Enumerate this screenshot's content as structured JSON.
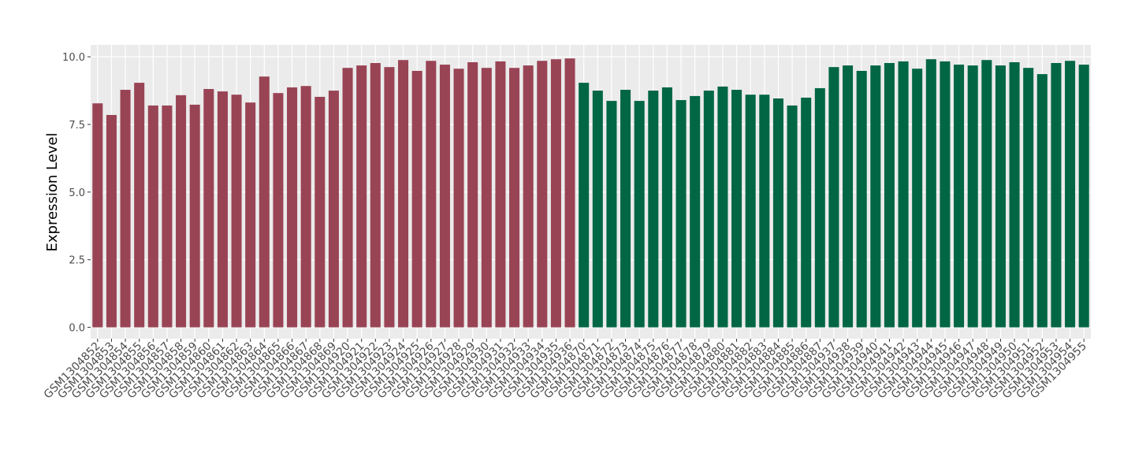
{
  "chart_data": {
    "type": "bar",
    "y_label": "Expression Level",
    "categories": [
      "GSM1304852",
      "GSM1304853",
      "GSM1304854",
      "GSM1304855",
      "GSM1304856",
      "GSM1304857",
      "GSM1304858",
      "GSM1304859",
      "GSM1304860",
      "GSM1304861",
      "GSM1304862",
      "GSM1304863",
      "GSM1304864",
      "GSM1304865",
      "GSM1304866",
      "GSM1304867",
      "GSM1304868",
      "GSM1304869",
      "GSM1304920",
      "GSM1304921",
      "GSM1304922",
      "GSM1304923",
      "GSM1304924",
      "GSM1304925",
      "GSM1304926",
      "GSM1304927",
      "GSM1304928",
      "GSM1304929",
      "GSM1304930",
      "GSM1304931",
      "GSM1304932",
      "GSM1304933",
      "GSM1304934",
      "GSM1304935",
      "GSM1304936",
      "GSM1304870",
      "GSM1304871",
      "GSM1304872",
      "GSM1304873",
      "GSM1304874",
      "GSM1304875",
      "GSM1304876",
      "GSM1304877",
      "GSM1304878",
      "GSM1304879",
      "GSM1304880",
      "GSM1304881",
      "GSM1304882",
      "GSM1304883",
      "GSM1304884",
      "GSM1304885",
      "GSM1304886",
      "GSM1304887",
      "GSM1304937",
      "GSM1304938",
      "GSM1304939",
      "GSM1304940",
      "GSM1304941",
      "GSM1304942",
      "GSM1304943",
      "GSM1304944",
      "GSM1304945",
      "GSM1304946",
      "GSM1304947",
      "GSM1304948",
      "GSM1304949",
      "GSM1304950",
      "GSM1304951",
      "GSM1304952",
      "GSM1304953",
      "GSM1304954",
      "GSM1304955"
    ],
    "values": [
      8.28,
      7.85,
      8.78,
      9.04,
      8.2,
      8.2,
      8.58,
      8.23,
      8.81,
      8.72,
      8.6,
      8.31,
      9.27,
      8.66,
      8.87,
      8.92,
      8.52,
      8.75,
      9.59,
      9.68,
      9.77,
      9.62,
      9.88,
      9.48,
      9.85,
      9.71,
      9.56,
      9.8,
      9.59,
      9.83,
      9.59,
      9.68,
      9.85,
      9.91,
      9.94,
      9.04,
      8.75,
      8.37,
      8.78,
      8.37,
      8.75,
      8.87,
      8.4,
      8.55,
      8.75,
      8.9,
      8.78,
      8.6,
      8.6,
      8.46,
      8.2,
      8.49,
      8.84,
      9.62,
      9.68,
      9.48,
      9.68,
      9.77,
      9.83,
      9.56,
      9.91,
      9.83,
      9.71,
      9.68,
      9.88,
      9.68,
      9.8,
      9.59,
      9.36,
      9.77,
      9.85,
      9.71
    ],
    "colors": [
      "#994455",
      "#994455",
      "#994455",
      "#994455",
      "#994455",
      "#994455",
      "#994455",
      "#994455",
      "#994455",
      "#994455",
      "#994455",
      "#994455",
      "#994455",
      "#994455",
      "#994455",
      "#994455",
      "#994455",
      "#994455",
      "#994455",
      "#994455",
      "#994455",
      "#994455",
      "#994455",
      "#994455",
      "#994455",
      "#994455",
      "#994455",
      "#994455",
      "#994455",
      "#994455",
      "#994455",
      "#994455",
      "#994455",
      "#994455",
      "#994455",
      "#006644",
      "#006644",
      "#006644",
      "#006644",
      "#006644",
      "#006644",
      "#006644",
      "#006644",
      "#006644",
      "#006644",
      "#006644",
      "#006644",
      "#006644",
      "#006644",
      "#006644",
      "#006644",
      "#006644",
      "#006644",
      "#006644",
      "#006644",
      "#006644",
      "#006644",
      "#006644",
      "#006644",
      "#006644",
      "#006644",
      "#006644",
      "#006644",
      "#006644",
      "#006644",
      "#006644",
      "#006644",
      "#006644",
      "#006644",
      "#006644",
      "#006644",
      "#006644"
    ],
    "ylim": [
      -0.42,
      10.44
    ],
    "yticks": [
      {
        "value": 0,
        "label": "0.0"
      },
      2.5,
      {
        "value": 5,
        "label": "5.0"
      },
      7.5,
      {
        "value": 10,
        "label": "10.0"
      }
    ],
    "grid": true,
    "background": "#ebebeb"
  }
}
